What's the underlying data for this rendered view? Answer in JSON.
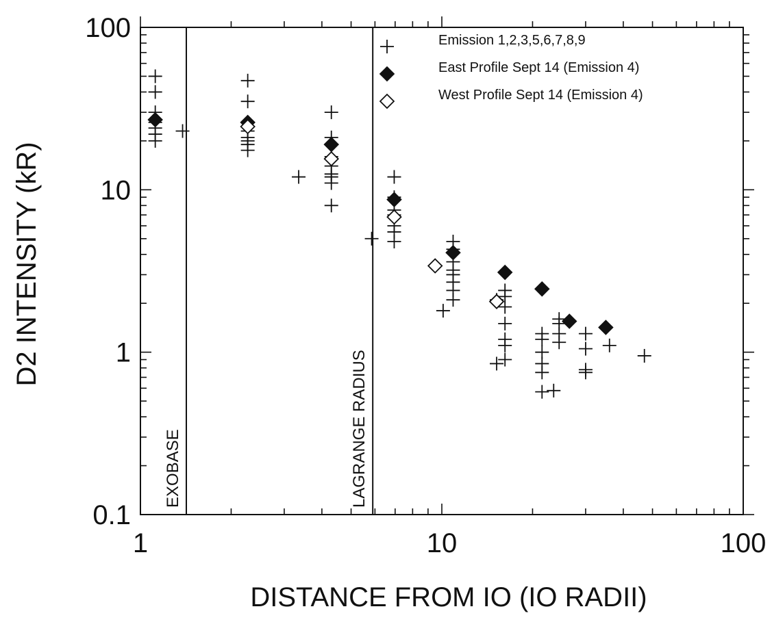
{
  "chart_data": {
    "type": "scatter",
    "x_scale": "log",
    "y_scale": "log",
    "xlim": [
      1,
      100
    ],
    "ylim": [
      0.1,
      100
    ],
    "xlabel": "DISTANCE FROM IO (IO RADII)",
    "ylabel": "D2 INTENSITY (kR)",
    "x_tick_labels": [
      {
        "value": 1,
        "label": "1"
      },
      {
        "value": 10,
        "label": "10"
      },
      {
        "value": 100,
        "label": "100"
      }
    ],
    "y_tick_labels": [
      {
        "value": 0.1,
        "label": "0.1"
      },
      {
        "value": 1,
        "label": "1"
      },
      {
        "value": 10,
        "label": "10"
      },
      {
        "value": 100,
        "label": "100"
      }
    ],
    "legend_position": "top-right",
    "vertical_lines": [
      {
        "x": 1.42,
        "label": "EXOBASE"
      },
      {
        "x": 5.9,
        "label": "LAGRANGE RADIUS"
      }
    ],
    "series": [
      {
        "name": "Emission 1,2,3,5,6,7,8,9",
        "marker": "plus",
        "points": [
          [
            1.12,
            50
          ],
          [
            1.12,
            40
          ],
          [
            1.12,
            30
          ],
          [
            1.12,
            26
          ],
          [
            1.12,
            24
          ],
          [
            1.12,
            22
          ],
          [
            1.12,
            20
          ],
          [
            1.38,
            23
          ],
          [
            2.27,
            47
          ],
          [
            2.27,
            35
          ],
          [
            2.27,
            26
          ],
          [
            2.27,
            23
          ],
          [
            2.27,
            21
          ],
          [
            2.27,
            20
          ],
          [
            2.27,
            19
          ],
          [
            2.27,
            17.5
          ],
          [
            3.35,
            12
          ],
          [
            4.3,
            30
          ],
          [
            4.3,
            21
          ],
          [
            4.3,
            19
          ],
          [
            4.3,
            16
          ],
          [
            4.3,
            14
          ],
          [
            4.3,
            12.5
          ],
          [
            4.3,
            12
          ],
          [
            4.3,
            11
          ],
          [
            4.3,
            8
          ],
          [
            5.85,
            5
          ],
          [
            6.95,
            12
          ],
          [
            6.95,
            9
          ],
          [
            6.95,
            7.5
          ],
          [
            6.95,
            7
          ],
          [
            6.95,
            6
          ],
          [
            6.95,
            5.5
          ],
          [
            6.95,
            4.8
          ],
          [
            10.1,
            1.8
          ],
          [
            10.9,
            4.8
          ],
          [
            10.9,
            4.3
          ],
          [
            10.9,
            3.6
          ],
          [
            10.9,
            3.2
          ],
          [
            10.9,
            3
          ],
          [
            10.9,
            2.7
          ],
          [
            10.9,
            2.4
          ],
          [
            10.9,
            2.1
          ],
          [
            15.2,
            2.1
          ],
          [
            15.2,
            0.85
          ],
          [
            16.2,
            2.4
          ],
          [
            16.2,
            2.2
          ],
          [
            16.2,
            1.9
          ],
          [
            16.2,
            1.5
          ],
          [
            16.2,
            1.2
          ],
          [
            16.2,
            1.1
          ],
          [
            16.2,
            0.9
          ],
          [
            21.5,
            1.3
          ],
          [
            21.5,
            1.2
          ],
          [
            21.5,
            1.0
          ],
          [
            21.5,
            0.85
          ],
          [
            21.5,
            0.75
          ],
          [
            21.5,
            0.57
          ],
          [
            23.5,
            0.58
          ],
          [
            24.5,
            1.6
          ],
          [
            24.5,
            1.5
          ],
          [
            24.5,
            1.3
          ],
          [
            24.5,
            1.15
          ],
          [
            30,
            1.3
          ],
          [
            30,
            1.05
          ],
          [
            30,
            0.78
          ],
          [
            30,
            0.75
          ],
          [
            36,
            1.1
          ],
          [
            47,
            0.95
          ]
        ]
      },
      {
        "name": "East Profile Sept 14 (Emission 4)",
        "marker": "filled-diamond",
        "points": [
          [
            1.12,
            27
          ],
          [
            2.27,
            26
          ],
          [
            4.3,
            19
          ],
          [
            6.95,
            8.7
          ],
          [
            10.9,
            4.1
          ],
          [
            16.2,
            3.1
          ],
          [
            21.5,
            2.45
          ],
          [
            26.5,
            1.55
          ],
          [
            35,
            1.42
          ]
        ]
      },
      {
        "name": "West Profile Sept 14 (Emission 4)",
        "marker": "open-diamond",
        "points": [
          [
            2.27,
            24.5
          ],
          [
            4.3,
            15.5
          ],
          [
            6.95,
            6.8
          ],
          [
            9.5,
            3.4
          ],
          [
            15.2,
            2.05
          ]
        ]
      }
    ]
  }
}
